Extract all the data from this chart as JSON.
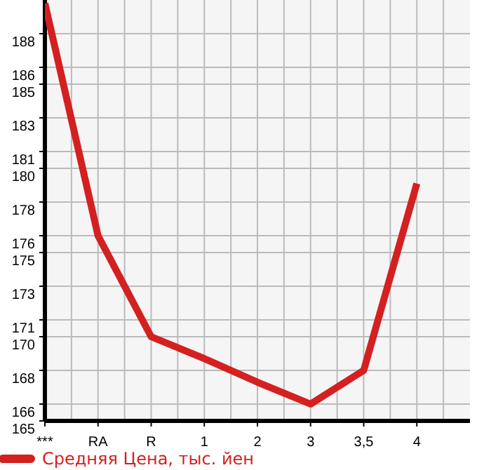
{
  "chart_data": {
    "type": "line",
    "categories": [
      "***",
      "RA",
      "R",
      "1",
      "2",
      "3",
      "3,5",
      "4"
    ],
    "series": [
      {
        "name": "Средняя Цена, тыс. йен",
        "color": "#d42020",
        "values": [
          189.8,
          176.0,
          170.0,
          168.7,
          167.3,
          166.0,
          168.0,
          179.1
        ]
      }
    ],
    "ylim": [
      165,
      190
    ],
    "yticks": [
      165,
      166,
      168,
      170,
      171,
      173,
      175,
      176,
      178,
      180,
      181,
      183,
      185,
      186,
      188
    ],
    "grid": true,
    "legend": "bottom",
    "marker": "none",
    "line_style": "solid"
  }
}
